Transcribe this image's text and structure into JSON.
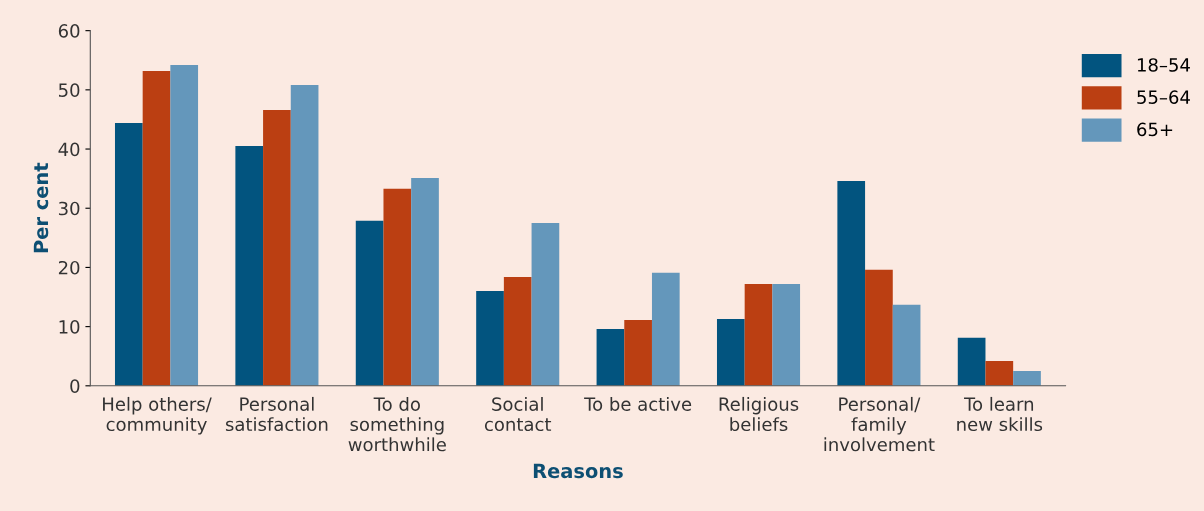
{
  "chart_data": {
    "type": "bar",
    "xlabel": "Reasons",
    "ylabel": "Per cent",
    "categories": [
      "Help others/\ncommunity",
      "Personal\nsatisfaction",
      "To do\nsomething\nworthwhile",
      "Social\ncontact",
      "To be active",
      "Religious\nbeliefs",
      "Personal/\nfamily\ninvolvement",
      "To learn\nnew skills"
    ],
    "series": [
      {
        "name": "18–54",
        "color": "#02547f",
        "values": [
          44.4,
          40.5,
          27.9,
          16.0,
          9.6,
          11.3,
          34.6,
          8.1
        ]
      },
      {
        "name": "55–64",
        "color": "#bb3f12",
        "values": [
          53.2,
          46.6,
          33.3,
          18.4,
          11.1,
          17.2,
          19.6,
          4.2
        ]
      },
      {
        "name": "65+",
        "color": "#6497bb",
        "values": [
          54.2,
          50.8,
          35.1,
          27.5,
          19.1,
          17.2,
          13.7,
          2.5
        ]
      }
    ],
    "ylim": [
      0,
      60
    ],
    "yticks": [
      0,
      10,
      20,
      30,
      40,
      50,
      60
    ],
    "grid": false,
    "legend": "top right"
  }
}
